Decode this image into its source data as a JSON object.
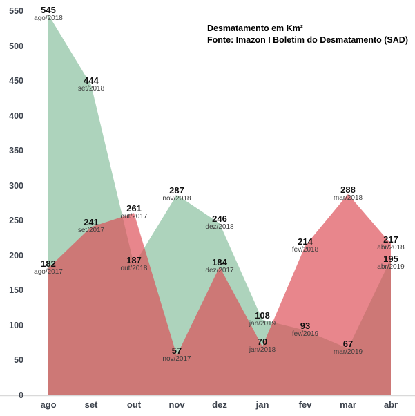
{
  "page": {
    "background": "#ffffff"
  },
  "chart_data": {
    "type": "area",
    "title": "Desmatamento em Km²",
    "subtitle": "Fonte: Imazon I Boletim do Desmatamento (SAD)",
    "categories": [
      "ago",
      "set",
      "out",
      "nov",
      "dez",
      "jan",
      "fev",
      "mar",
      "abr"
    ],
    "ylim": [
      0,
      550
    ],
    "y_ticks": [
      550,
      500,
      450,
      400,
      350,
      300,
      250,
      200,
      150,
      100,
      50,
      0
    ],
    "grid": false,
    "legend": "none",
    "series": [
      {
        "name": "ago/2018 - abr/2019",
        "role": "background-area",
        "color": "#add3bc",
        "opacity": 1,
        "values": [
          545,
          444,
          187,
          287,
          246,
          108,
          93,
          67,
          195
        ],
        "point_labels": [
          "ago/2018",
          "set/2018",
          "out/2018",
          "nov/2018",
          "dez/2018",
          "jan/2019",
          "fev/2019",
          "mar/2019",
          "abr/2019"
        ]
      },
      {
        "name": "ago/2017 - abr/2018",
        "role": "overlay-area",
        "color": "#dd4b53",
        "opacity": 0.67,
        "values": [
          182,
          241,
          261,
          57,
          184,
          70,
          214,
          288,
          217
        ],
        "point_labels": [
          "ago/2017",
          "set/2017",
          "out/2017",
          "nov/2017",
          "dez/2017",
          "jan/2018",
          "fev/2018",
          "mar/2018",
          "abr/2018"
        ]
      }
    ],
    "colors": {
      "green_fill": "#add3bc",
      "red_fill": "#dd4b53",
      "red_only_appearance": "#e8868c",
      "overlap_appearance": "#cd7a78",
      "axis_text": "#3d434d",
      "value_text": "#111111",
      "date_text": "#3c3c3c",
      "baseline": "#d9d9d9"
    }
  }
}
